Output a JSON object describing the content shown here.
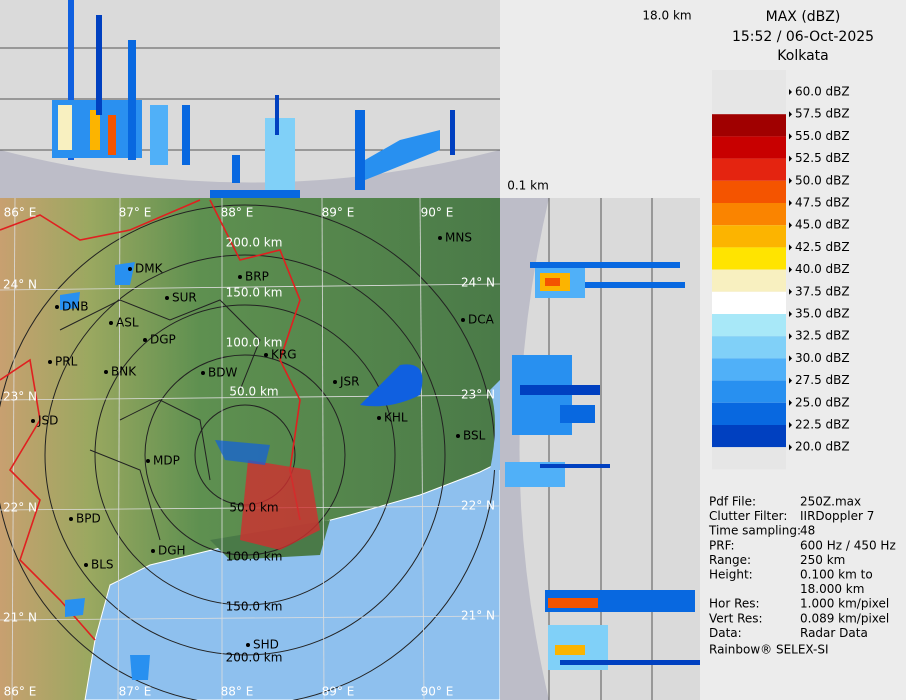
{
  "header": {
    "title": "MAX (dBZ)",
    "time": "15:52 / 06-Oct-2025",
    "site": "Kolkata"
  },
  "cross_section": {
    "top_height": "18.0 km",
    "bottom_height": "0.1 km"
  },
  "legend": [
    {
      "label": "60.0 dBZ",
      "color": "#e6e6e6"
    },
    {
      "label": "57.5 dBZ",
      "color": "#a00000"
    },
    {
      "label": "55.0 dBZ",
      "color": "#c80000"
    },
    {
      "label": "52.5 dBZ",
      "color": "#e42410"
    },
    {
      "label": "50.0 dBZ",
      "color": "#f45400"
    },
    {
      "label": "47.5 dBZ",
      "color": "#fa8400"
    },
    {
      "label": "45.0 dBZ",
      "color": "#fcb400"
    },
    {
      "label": "42.5 dBZ",
      "color": "#ffe400"
    },
    {
      "label": "40.0 dBZ",
      "color": "#f8f0c0"
    },
    {
      "label": "37.5 dBZ",
      "color": "#ffffff"
    },
    {
      "label": "35.0 dBZ",
      "color": "#a8e8f8"
    },
    {
      "label": "32.5 dBZ",
      "color": "#80d0f8"
    },
    {
      "label": "30.0 dBZ",
      "color": "#50b0f8"
    },
    {
      "label": "27.5 dBZ",
      "color": "#2890f0"
    },
    {
      "label": "25.0 dBZ",
      "color": "#0868e0"
    },
    {
      "label": "22.5 dBZ",
      "color": "#0040c0"
    },
    {
      "label": "20.0 dBZ",
      "color": "#e6e6e6"
    }
  ],
  "map": {
    "longitudes": [
      "86° E",
      "87° E",
      "88° E",
      "89° E",
      "90° E"
    ],
    "latitudes": [
      "24° N",
      "23° N",
      "22° N",
      "21° N"
    ],
    "range_rings": [
      "50.0 km",
      "100.0 km",
      "150.0 km",
      "200.0 km"
    ],
    "cities": [
      "MNS",
      "BRP",
      "DMK",
      "DNB",
      "SUR",
      "ASL",
      "DGP",
      "DCA",
      "KRG",
      "PRL",
      "BNK",
      "BDW",
      "JSR",
      "KHL",
      "JSD",
      "BSL",
      "MDP",
      "BPD",
      "DGH",
      "BLS",
      "SHD"
    ]
  },
  "info": [
    {
      "label": "Pdf File:",
      "value": [
        "250Z.max"
      ]
    },
    {
      "label": "Clutter Filter:",
      "value": [
        "IIRDoppler 7"
      ]
    },
    {
      "label": "Time sampling:",
      "value": [
        "48"
      ]
    },
    {
      "label": "PRF:",
      "value": [
        "600 Hz / 450 Hz"
      ]
    },
    {
      "label": "Range:",
      "value": [
        "250 km"
      ]
    },
    {
      "label": "Height:",
      "value": [
        "0.100 km to",
        "18.000 km"
      ]
    },
    {
      "label": "Hor Res:",
      "value": [
        "1.000 km/pixel"
      ]
    },
    {
      "label": "Vert Res:",
      "value": [
        "0.089 km/pixel"
      ]
    },
    {
      "label": "Data:",
      "value": [
        "Radar Data"
      ]
    }
  ],
  "credit": "Rainbow® SELEX-SI"
}
